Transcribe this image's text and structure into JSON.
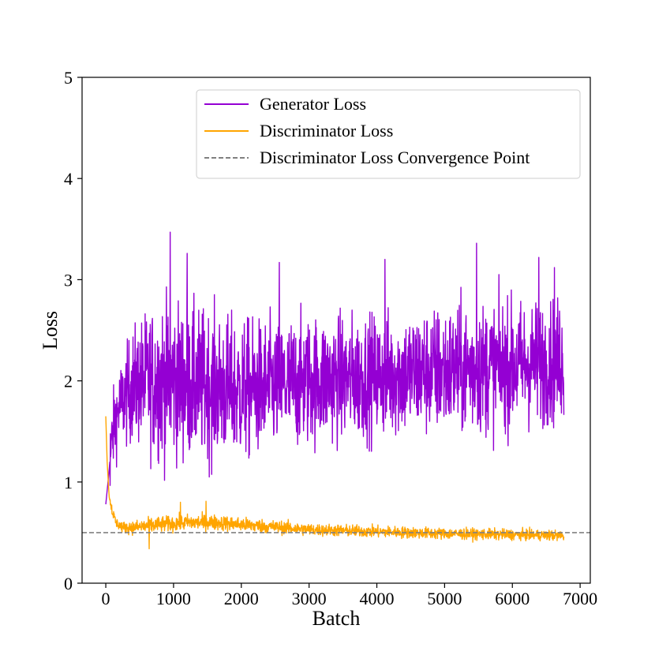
{
  "chart_data": {
    "type": "line",
    "title": "",
    "xlabel": "Batch",
    "ylabel": "Loss",
    "xlim": [
      -350,
      7150
    ],
    "ylim": [
      0,
      5
    ],
    "xticks": [
      0,
      1000,
      2000,
      3000,
      4000,
      5000,
      6000,
      7000
    ],
    "yticks": [
      0,
      1,
      2,
      3,
      4,
      5
    ],
    "legend": {
      "position": "top-right"
    },
    "series": [
      {
        "name": "Generator Loss",
        "color": "#9400D3",
        "style": "solid",
        "x_range": [
          0,
          6760
        ],
        "points": [
          [
            0,
            0.78
          ],
          [
            40,
            1.05
          ],
          [
            80,
            1.35
          ],
          [
            120,
            1.55
          ],
          [
            200,
            1.75
          ],
          [
            300,
            1.85
          ],
          [
            400,
            1.95
          ],
          [
            600,
            2.0
          ],
          [
            1000,
            2.0
          ],
          [
            1500,
            1.95
          ],
          [
            2000,
            1.9
          ],
          [
            2500,
            1.95
          ],
          [
            3000,
            2.0
          ],
          [
            4000,
            2.05
          ],
          [
            5000,
            2.1
          ],
          [
            6000,
            2.15
          ],
          [
            6760,
            2.2
          ]
        ],
        "noise_band": [
          [
            200,
            0.45
          ],
          [
            400,
            0.65
          ],
          [
            800,
            0.9
          ],
          [
            1500,
            0.85
          ],
          [
            2500,
            0.75
          ],
          [
            4000,
            0.7
          ],
          [
            5500,
            0.75
          ],
          [
            6760,
            0.7
          ]
        ],
        "peaks": [
          [
            950,
            3.47
          ],
          [
            1200,
            3.26
          ],
          [
            2560,
            3.17
          ],
          [
            4120,
            3.2
          ],
          [
            5470,
            3.36
          ],
          [
            6390,
            3.22
          ],
          [
            6620,
            3.12
          ]
        ]
      },
      {
        "name": "Discriminator Loss",
        "color": "#FFA500",
        "style": "solid",
        "x_range": [
          0,
          6760
        ],
        "points": [
          [
            0,
            1.65
          ],
          [
            20,
            1.2
          ],
          [
            50,
            0.85
          ],
          [
            100,
            0.7
          ],
          [
            150,
            0.6
          ],
          [
            250,
            0.55
          ],
          [
            400,
            0.55
          ],
          [
            800,
            0.58
          ],
          [
            1200,
            0.6
          ],
          [
            1600,
            0.6
          ],
          [
            2000,
            0.58
          ],
          [
            2600,
            0.55
          ],
          [
            3000,
            0.53
          ],
          [
            4000,
            0.51
          ],
          [
            5000,
            0.49
          ],
          [
            6000,
            0.48
          ],
          [
            6760,
            0.47
          ]
        ],
        "noise_band": [
          [
            200,
            0.06
          ],
          [
            600,
            0.09
          ],
          [
            1500,
            0.09
          ],
          [
            3000,
            0.07
          ],
          [
            6760,
            0.06
          ]
        ],
        "peaks": [
          [
            1100,
            0.8
          ],
          [
            1480,
            0.81
          ],
          [
            640,
            0.34
          ]
        ]
      },
      {
        "name": "Discriminator Loss Convergence Point",
        "color": "#808080",
        "style": "dashed",
        "type": "hline",
        "y": 0.5
      }
    ]
  }
}
